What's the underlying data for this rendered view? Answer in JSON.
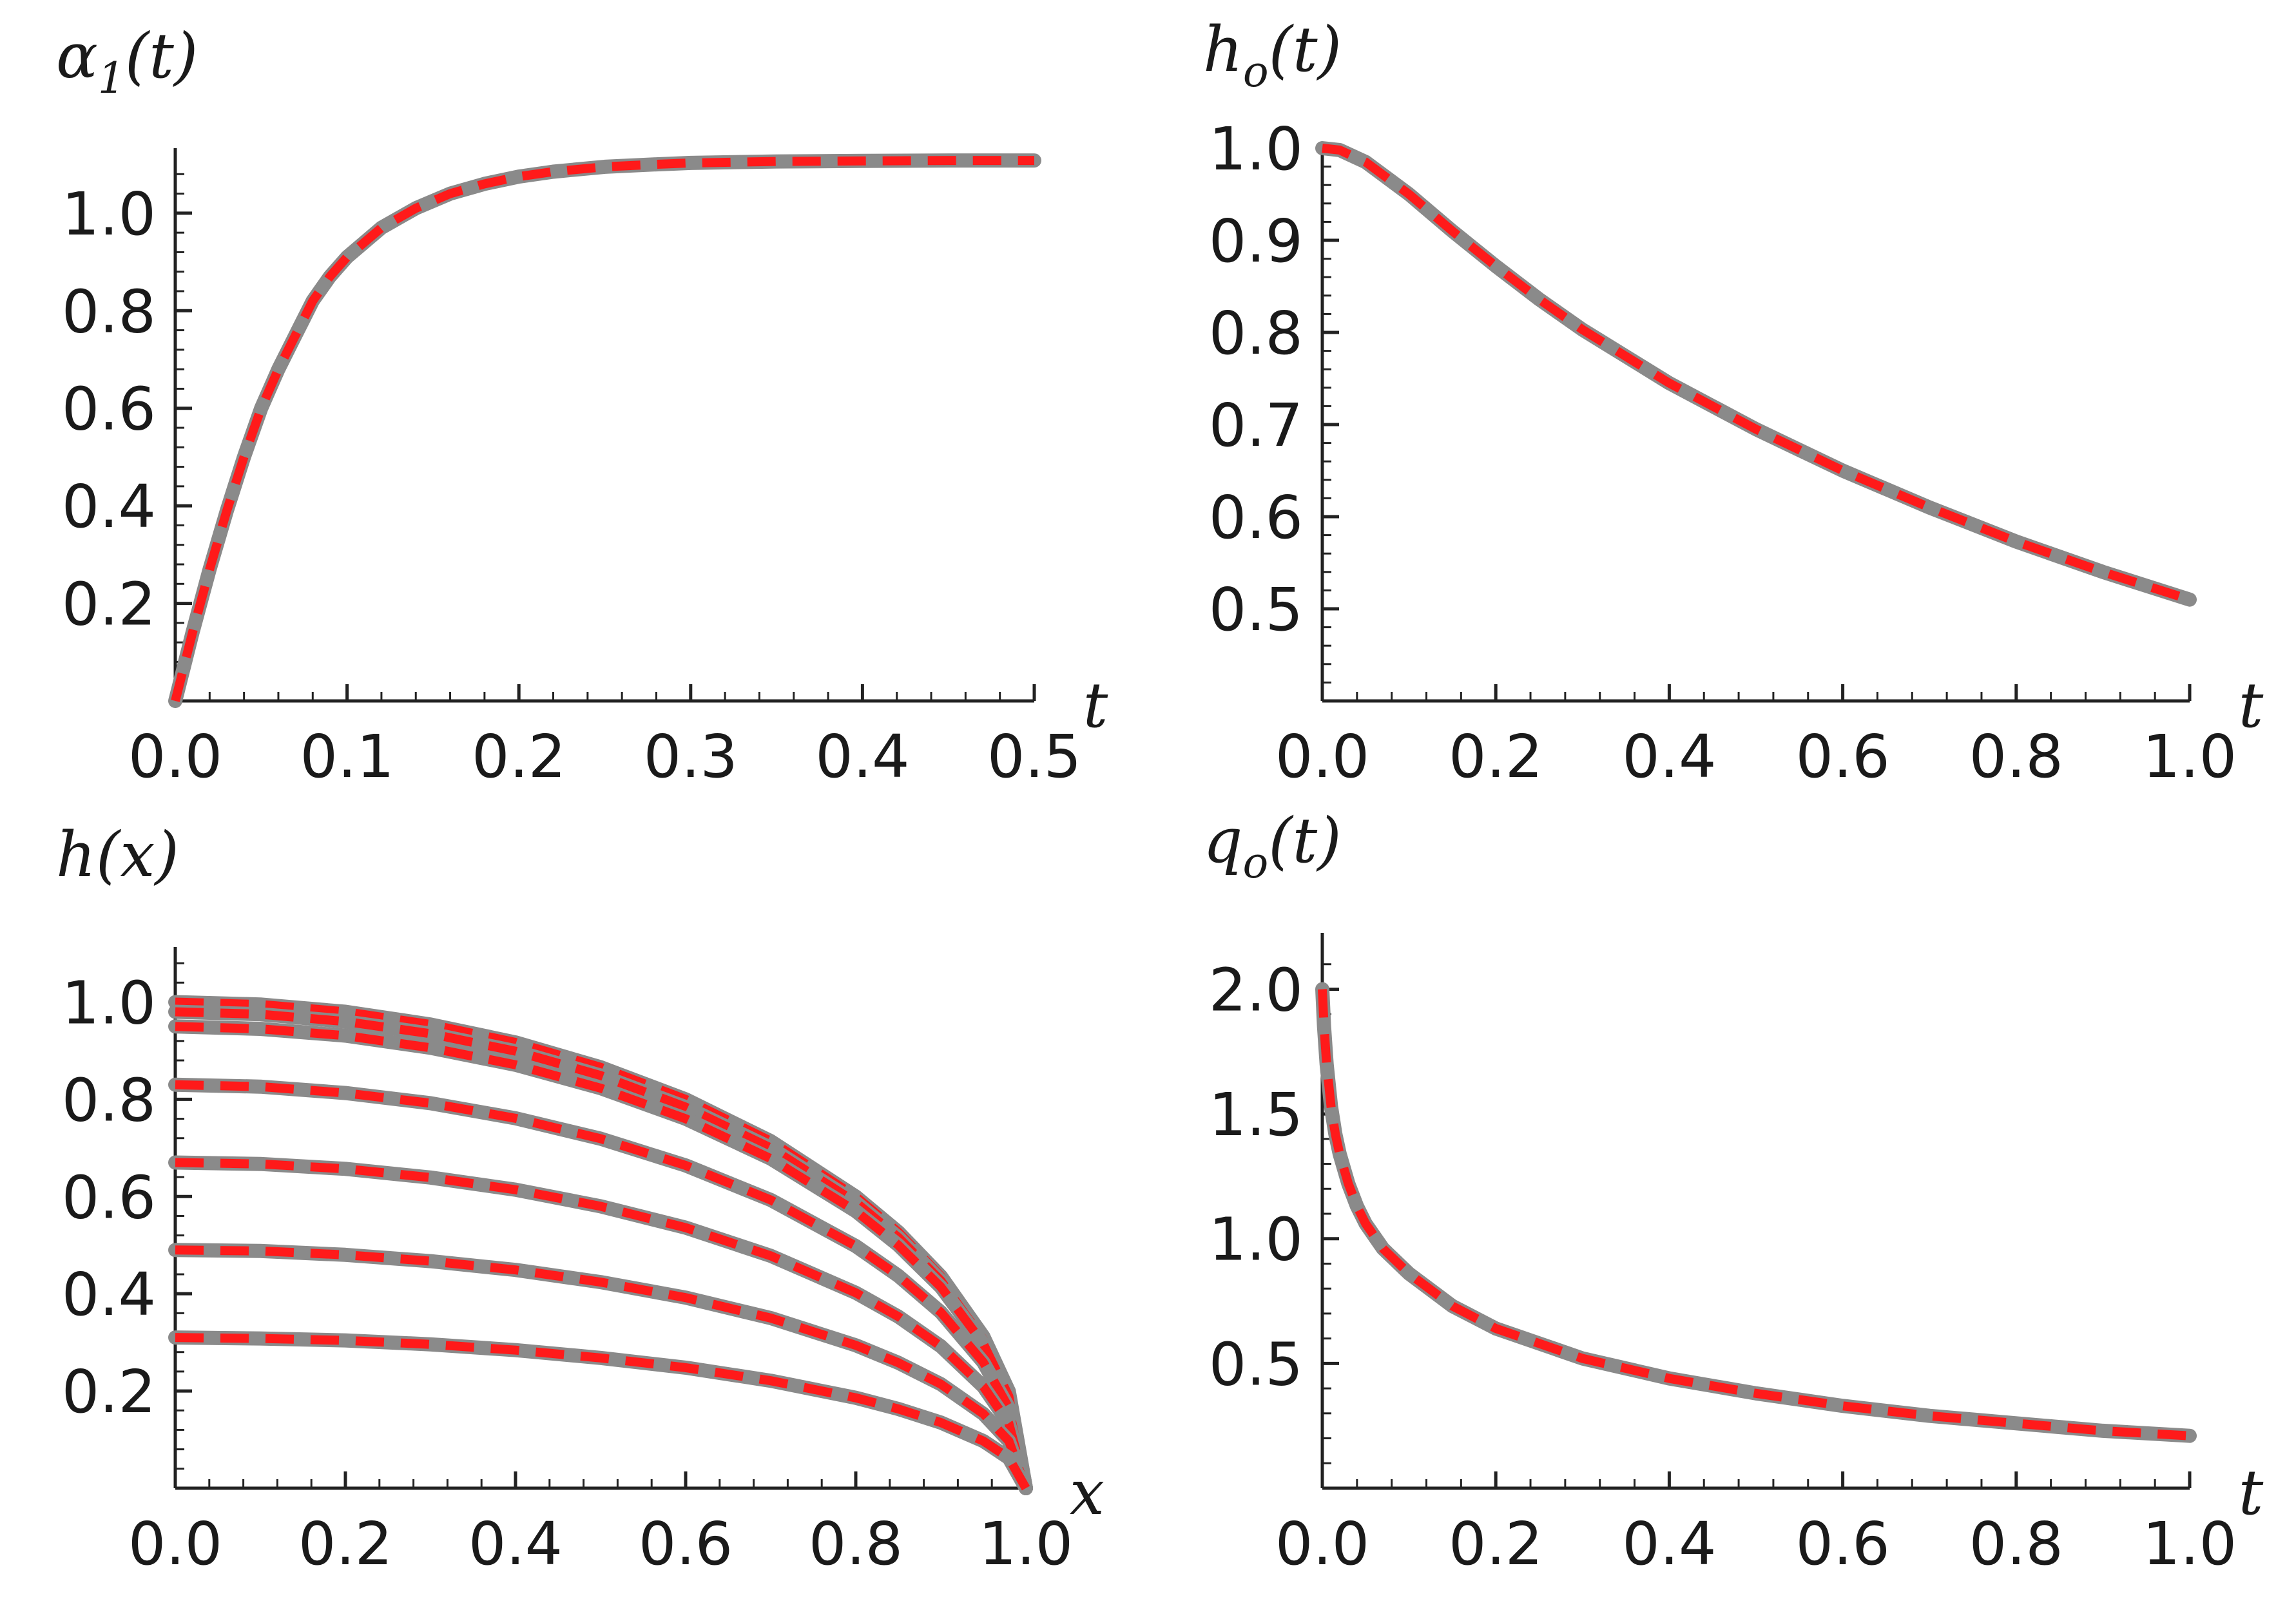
{
  "chart_data": [
    {
      "id": "alpha",
      "type": "line",
      "title_main": "α",
      "title_sub": "1",
      "title_tail": "(t)",
      "xlabel": "t",
      "xlim": [
        0,
        0.5
      ],
      "ylim": [
        0,
        1.12
      ],
      "xticks": [
        "0.0",
        "0.1",
        "0.2",
        "0.3",
        "0.4",
        "0.5"
      ],
      "yticks": [
        "0.2",
        "0.4",
        "0.6",
        "0.8",
        "1.0"
      ],
      "series": [
        {
          "x": [
            0,
            0.01,
            0.02,
            0.03,
            0.04,
            0.05,
            0.06,
            0.07,
            0.08,
            0.09,
            0.1,
            0.12,
            0.14,
            0.16,
            0.18,
            0.2,
            0.22,
            0.25,
            0.28,
            0.3,
            0.35,
            0.4,
            0.45,
            0.5
          ],
          "y": [
            0.0,
            0.14,
            0.27,
            0.39,
            0.5,
            0.6,
            0.68,
            0.75,
            0.82,
            0.87,
            0.91,
            0.97,
            1.01,
            1.04,
            1.06,
            1.075,
            1.085,
            1.095,
            1.1,
            1.103,
            1.106,
            1.107,
            1.108,
            1.108
          ]
        }
      ]
    },
    {
      "id": "ho",
      "type": "line",
      "title_main": "h",
      "title_sub": "o",
      "title_tail": "(t)",
      "xlabel": "t",
      "xlim": [
        0,
        1.0
      ],
      "ylim": [
        0.4,
        1.0
      ],
      "xticks": [
        "0.0",
        "0.2",
        "0.4",
        "0.6",
        "0.8",
        "1.0"
      ],
      "yticks": [
        "0.5",
        "0.6",
        "0.7",
        "0.8",
        "0.9",
        "1.0"
      ],
      "series": [
        {
          "x": [
            0,
            0.02,
            0.05,
            0.1,
            0.15,
            0.2,
            0.25,
            0.3,
            0.4,
            0.5,
            0.6,
            0.7,
            0.8,
            0.9,
            1.0
          ],
          "y": [
            1.0,
            0.998,
            0.985,
            0.95,
            0.91,
            0.872,
            0.836,
            0.803,
            0.745,
            0.695,
            0.65,
            0.61,
            0.573,
            0.54,
            0.51
          ]
        }
      ]
    },
    {
      "id": "hx",
      "type": "line",
      "title_main": "h",
      "title_sub": "",
      "title_tail": "(x)",
      "xlabel": "x",
      "xlim": [
        0,
        1.0
      ],
      "ylim": [
        0,
        1.1
      ],
      "xticks": [
        "0.0",
        "0.2",
        "0.4",
        "0.6",
        "0.8",
        "1.0"
      ],
      "yticks": [
        "0.2",
        "0.4",
        "0.6",
        "0.8",
        "1.0"
      ],
      "series": [
        {
          "x": [
            0,
            0.1,
            0.2,
            0.3,
            0.4,
            0.5,
            0.6,
            0.7,
            0.8,
            0.85,
            0.9,
            0.95,
            0.98,
            1.0
          ],
          "y": [
            1.0,
            0.995,
            0.98,
            0.954,
            0.917,
            0.866,
            0.8,
            0.714,
            0.6,
            0.527,
            0.436,
            0.312,
            0.199,
            0.0
          ]
        },
        {
          "x": [
            0,
            0.1,
            0.2,
            0.3,
            0.4,
            0.5,
            0.6,
            0.7,
            0.8,
            0.85,
            0.9,
            0.95,
            0.98,
            1.0
          ],
          "y": [
            0.98,
            0.975,
            0.96,
            0.935,
            0.899,
            0.849,
            0.784,
            0.7,
            0.588,
            0.516,
            0.427,
            0.306,
            0.195,
            0.0
          ]
        },
        {
          "x": [
            0,
            0.1,
            0.2,
            0.3,
            0.4,
            0.5,
            0.6,
            0.7,
            0.8,
            0.85,
            0.9,
            0.95,
            0.98,
            1.0
          ],
          "y": [
            0.95,
            0.945,
            0.931,
            0.906,
            0.871,
            0.823,
            0.76,
            0.678,
            0.57,
            0.5,
            0.414,
            0.297,
            0.189,
            0.0
          ]
        },
        {
          "x": [
            0,
            0.1,
            0.2,
            0.3,
            0.4,
            0.5,
            0.6,
            0.7,
            0.8,
            0.85,
            0.9,
            0.95,
            0.98,
            1.0
          ],
          "y": [
            0.83,
            0.826,
            0.813,
            0.792,
            0.761,
            0.719,
            0.664,
            0.593,
            0.498,
            0.437,
            0.362,
            0.259,
            0.165,
            0.0
          ]
        },
        {
          "x": [
            0,
            0.1,
            0.2,
            0.3,
            0.4,
            0.5,
            0.6,
            0.7,
            0.8,
            0.85,
            0.9,
            0.95,
            0.98,
            1.0
          ],
          "y": [
            0.67,
            0.667,
            0.657,
            0.639,
            0.614,
            0.58,
            0.536,
            0.478,
            0.402,
            0.353,
            0.292,
            0.209,
            0.133,
            0.0
          ]
        },
        {
          "x": [
            0,
            0.1,
            0.2,
            0.3,
            0.4,
            0.5,
            0.6,
            0.7,
            0.8,
            0.85,
            0.9,
            0.95,
            0.98,
            1.0
          ],
          "y": [
            0.49,
            0.488,
            0.48,
            0.467,
            0.449,
            0.424,
            0.392,
            0.35,
            0.294,
            0.258,
            0.214,
            0.153,
            0.097,
            0.0
          ]
        },
        {
          "x": [
            0,
            0.1,
            0.2,
            0.3,
            0.4,
            0.5,
            0.6,
            0.7,
            0.8,
            0.85,
            0.9,
            0.95,
            0.98,
            1.0
          ],
          "y": [
            0.31,
            0.308,
            0.304,
            0.296,
            0.284,
            0.268,
            0.248,
            0.221,
            0.186,
            0.163,
            0.135,
            0.097,
            0.062,
            0.0
          ]
        }
      ]
    },
    {
      "id": "qo",
      "type": "line",
      "title_main": "q",
      "title_sub": "o",
      "title_tail": "(t)",
      "xlabel": "t",
      "xlim": [
        0,
        1.0
      ],
      "ylim": [
        0,
        2.2
      ],
      "xticks": [
        "0.0",
        "0.2",
        "0.4",
        "0.6",
        "0.8",
        "1.0"
      ],
      "yticks": [
        "0.5",
        "1.0",
        "1.5",
        "2.0"
      ],
      "series": [
        {
          "x": [
            0,
            0.002,
            0.005,
            0.01,
            0.015,
            0.02,
            0.03,
            0.04,
            0.05,
            0.07,
            0.1,
            0.15,
            0.2,
            0.3,
            0.4,
            0.5,
            0.6,
            0.7,
            0.8,
            0.9,
            1.0
          ],
          "y": [
            2.0,
            1.85,
            1.7,
            1.53,
            1.42,
            1.34,
            1.22,
            1.13,
            1.06,
            0.96,
            0.86,
            0.73,
            0.64,
            0.52,
            0.44,
            0.38,
            0.33,
            0.29,
            0.26,
            0.23,
            0.21
          ]
        }
      ]
    }
  ],
  "style": {
    "exact_color": "#8a8a8a",
    "approx_color": "#ff1a1a",
    "axis_color": "#222222"
  }
}
